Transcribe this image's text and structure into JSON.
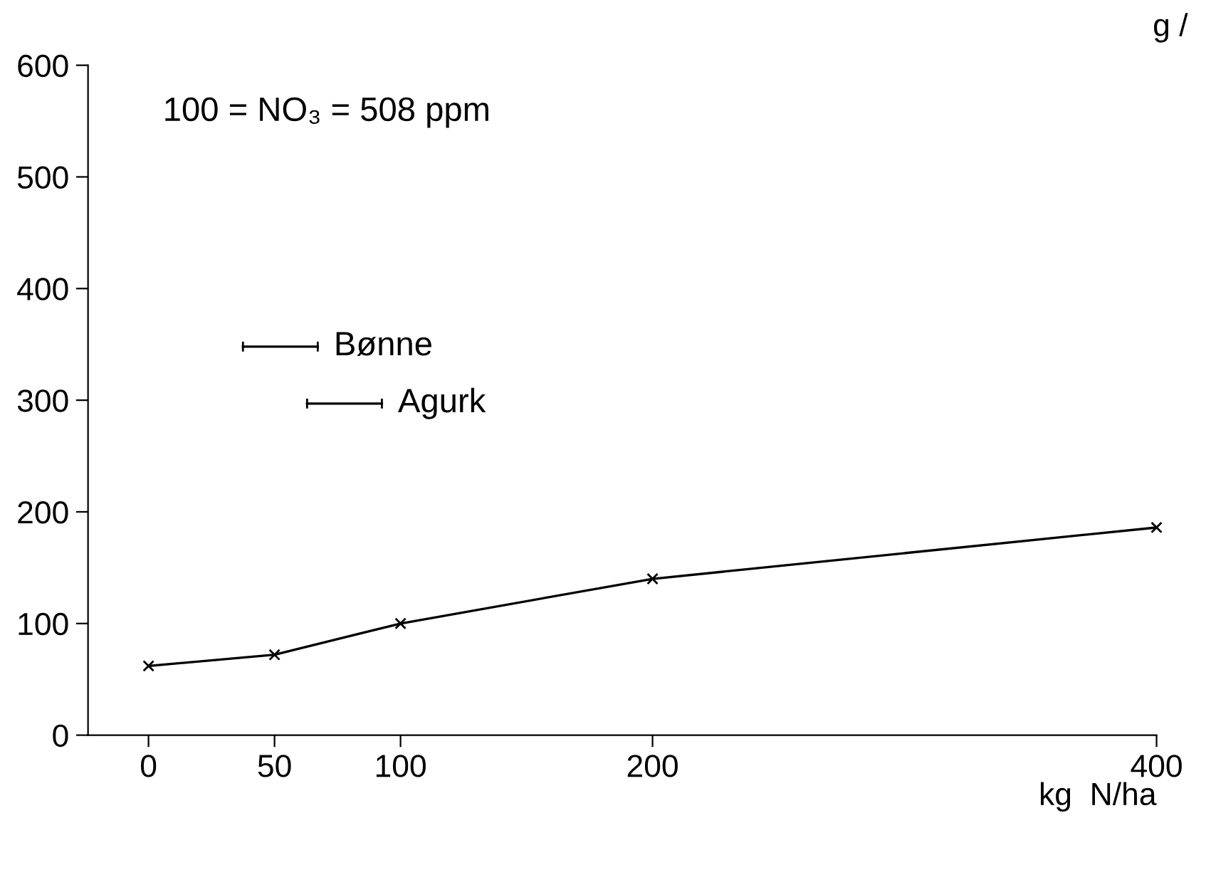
{
  "chart_data": {
    "type": "line",
    "xlabel": "kg  N/ha",
    "x": [
      0,
      50,
      100,
      200,
      400
    ],
    "series": [
      {
        "color": "#000000",
        "values": [
          62,
          72,
          100,
          140,
          186
        ]
      }
    ],
    "xlim": [
      -24,
      400
    ],
    "ylim": [
      0,
      600
    ],
    "xticks": [
      0,
      50,
      100,
      200,
      400
    ],
    "yticks": [
      0,
      100,
      200,
      300,
      400,
      500,
      600
    ],
    "marker": "cross",
    "line_style": "solid",
    "grid": false,
    "legend": false,
    "annotations": [
      "100 = NO₃ = 508 ppm",
      "Bønne",
      "Agurk",
      "g /"
    ]
  }
}
